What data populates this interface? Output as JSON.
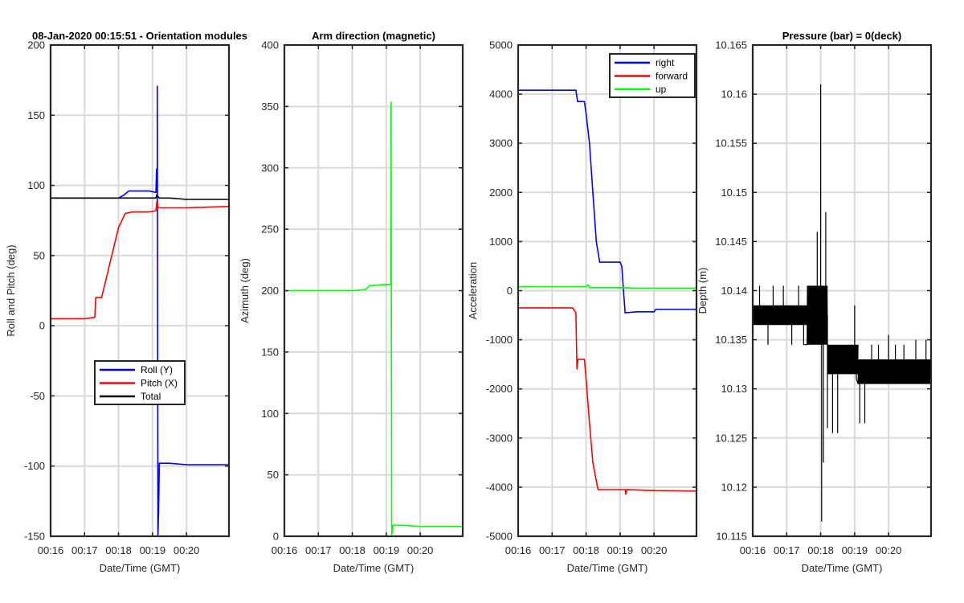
{
  "figure": {
    "background": "#ffffff",
    "grid_color": "#d9d9d9"
  },
  "chart_data": [
    {
      "type": "line",
      "title": "08-Jan-2020 00:15:51 - Orientation modules",
      "xlabel": "Date/Time (GMT)",
      "ylabel": "Roll and Pitch (deg)",
      "x_unit": "minutes",
      "xlim": [
        16,
        21.25
      ],
      "ylim": [
        -150,
        200
      ],
      "xticks": [
        16,
        17,
        18,
        19,
        20
      ],
      "xtick_labels": [
        "00:16",
        "00:17",
        "00:18",
        "00:19",
        "00:20"
      ],
      "yticks": [
        -150,
        -100,
        -50,
        0,
        50,
        100,
        150,
        200
      ],
      "ytick_labels": [
        "-150",
        "-100",
        "-50",
        "0",
        "50",
        "100",
        "150",
        "200"
      ],
      "grid": true,
      "legend": "lower-middle",
      "series": [
        {
          "name": "Roll (Y)",
          "color": "#0000ff",
          "points": [
            [
              16.0,
              91
            ],
            [
              17.8,
              91
            ],
            [
              18.0,
              91
            ],
            [
              18.15,
              93
            ],
            [
              18.3,
              96
            ],
            [
              18.9,
              96
            ],
            [
              19.1,
              95
            ],
            [
              19.12,
              112
            ],
            [
              19.14,
              95
            ],
            [
              19.14,
              171
            ],
            [
              19.16,
              -150
            ],
            [
              19.18,
              -130
            ],
            [
              19.2,
              -98
            ],
            [
              19.5,
              -98
            ],
            [
              20.0,
              -99
            ],
            [
              20.5,
              -99
            ],
            [
              21.25,
              -99
            ]
          ]
        },
        {
          "name": "Pitch (X)",
          "color": "#ff0000",
          "points": [
            [
              16.0,
              5
            ],
            [
              16.5,
              5
            ],
            [
              17.0,
              5
            ],
            [
              17.3,
              6
            ],
            [
              17.33,
              20
            ],
            [
              17.5,
              20
            ],
            [
              17.6,
              30
            ],
            [
              17.8,
              50
            ],
            [
              18.0,
              70
            ],
            [
              18.2,
              80
            ],
            [
              18.4,
              81
            ],
            [
              18.9,
              81
            ],
            [
              19.1,
              82
            ],
            [
              19.13,
              89
            ],
            [
              19.16,
              84
            ],
            [
              19.5,
              84
            ],
            [
              20.0,
              84
            ],
            [
              21.25,
              85
            ]
          ]
        },
        {
          "name": "Total",
          "color": "#000000",
          "points": [
            [
              16.0,
              91
            ],
            [
              17.0,
              91
            ],
            [
              18.0,
              91
            ],
            [
              18.5,
              91
            ],
            [
              19.1,
              91
            ],
            [
              19.12,
              93
            ],
            [
              19.2,
              91
            ],
            [
              19.5,
              91
            ],
            [
              20.0,
              90
            ],
            [
              21.25,
              90
            ]
          ]
        }
      ]
    },
    {
      "type": "line",
      "title": "Arm direction (magnetic)",
      "xlabel": "Date/Time (GMT)",
      "ylabel": "Azimuth (deg)",
      "x_unit": "minutes",
      "xlim": [
        16,
        21.25
      ],
      "ylim": [
        0,
        400
      ],
      "xticks": [
        16,
        17,
        18,
        19,
        20
      ],
      "xtick_labels": [
        "00:16",
        "00:17",
        "00:18",
        "00:19",
        "00:20"
      ],
      "yticks": [
        0,
        50,
        100,
        150,
        200,
        250,
        300,
        350,
        400
      ],
      "ytick_labels": [
        "0",
        "50",
        "100",
        "150",
        "200",
        "250",
        "300",
        "350",
        "400"
      ],
      "grid": true,
      "series": [
        {
          "name": "",
          "color": "#00ff00",
          "points": [
            [
              16.0,
              200
            ],
            [
              17.0,
              200
            ],
            [
              18.0,
              200
            ],
            [
              18.4,
              201
            ],
            [
              18.5,
              204
            ],
            [
              19.0,
              205
            ],
            [
              19.13,
              205
            ],
            [
              19.14,
              354
            ],
            [
              19.16,
              1
            ],
            [
              19.2,
              9
            ],
            [
              19.5,
              9
            ],
            [
              20.0,
              8
            ],
            [
              20.5,
              8
            ],
            [
              21.25,
              8
            ]
          ]
        }
      ]
    },
    {
      "type": "line",
      "title": "",
      "xlabel": "Date/Time (GMT)",
      "ylabel": "Acceleration",
      "x_unit": "minutes",
      "xlim": [
        16,
        21.25
      ],
      "ylim": [
        -5000,
        5000
      ],
      "xticks": [
        16,
        17,
        18,
        19,
        20
      ],
      "xtick_labels": [
        "00:16",
        "00:17",
        "00:18",
        "00:19",
        "00:20"
      ],
      "yticks": [
        -5000,
        -4000,
        -3000,
        -2000,
        -1000,
        0,
        1000,
        2000,
        3000,
        4000,
        5000
      ],
      "ytick_labels": [
        "-5000",
        "-4000",
        "-3000",
        "-2000",
        "-1000",
        "0",
        "1000",
        "2000",
        "3000",
        "4000",
        "5000"
      ],
      "grid": true,
      "legend": "top-right",
      "series": [
        {
          "name": "right",
          "color": "#0000ff",
          "points": [
            [
              16.0,
              4080
            ],
            [
              17.0,
              4080
            ],
            [
              17.7,
              4080
            ],
            [
              17.75,
              3850
            ],
            [
              17.95,
              3850
            ],
            [
              18.0,
              3600
            ],
            [
              18.1,
              3000
            ],
            [
              18.2,
              2000
            ],
            [
              18.3,
              1000
            ],
            [
              18.4,
              580
            ],
            [
              19.0,
              580
            ],
            [
              19.05,
              500
            ],
            [
              19.1,
              0
            ],
            [
              19.15,
              -450
            ],
            [
              19.5,
              -430
            ],
            [
              20.0,
              -430
            ],
            [
              20.05,
              -380
            ],
            [
              21.25,
              -380
            ]
          ]
        },
        {
          "name": "forward",
          "color": "#ff0000",
          "points": [
            [
              16.0,
              -350
            ],
            [
              17.0,
              -350
            ],
            [
              17.6,
              -350
            ],
            [
              17.7,
              -450
            ],
            [
              17.73,
              -1600
            ],
            [
              17.76,
              -1400
            ],
            [
              17.95,
              -1400
            ],
            [
              18.0,
              -1800
            ],
            [
              18.1,
              -2700
            ],
            [
              18.2,
              -3500
            ],
            [
              18.35,
              -4050
            ],
            [
              19.0,
              -4050
            ],
            [
              19.15,
              -4050
            ],
            [
              19.17,
              -4150
            ],
            [
              19.2,
              -4050
            ],
            [
              20.0,
              -4070
            ],
            [
              21.25,
              -4080
            ]
          ]
        },
        {
          "name": "up",
          "color": "#00ff00",
          "points": [
            [
              16.0,
              80
            ],
            [
              17.0,
              80
            ],
            [
              18.0,
              80
            ],
            [
              18.05,
              120
            ],
            [
              18.1,
              60
            ],
            [
              19.0,
              60
            ],
            [
              19.5,
              50
            ],
            [
              20.0,
              50
            ],
            [
              21.25,
              50
            ]
          ]
        }
      ]
    },
    {
      "type": "line",
      "title": "Pressure (bar) = 0(deck)",
      "xlabel": "Date/Time (GMT)",
      "ylabel": "Depth (m)",
      "x_unit": "minutes",
      "xlim": [
        16,
        21.25
      ],
      "ylim": [
        10.115,
        10.165
      ],
      "xticks": [
        16,
        17,
        18,
        19,
        20
      ],
      "xtick_labels": [
        "00:16",
        "00:17",
        "00:18",
        "00:19",
        "00:20"
      ],
      "yticks": [
        10.115,
        10.12,
        10.125,
        10.13,
        10.135,
        10.14,
        10.145,
        10.15,
        10.155,
        10.16,
        10.165
      ],
      "ytick_labels": [
        "10.115",
        "10.12",
        "10.125",
        "10.13",
        "10.135",
        "10.14",
        "10.145",
        "10.15",
        "10.155",
        "10.16",
        "10.165"
      ],
      "grid": true,
      "series": [
        {
          "name": "",
          "color": "#000000",
          "noisy_segments": [
            {
              "x_start": 16.0,
              "x_end": 17.6,
              "y_low": 10.1365,
              "y_high": 10.1385,
              "spikes": [
                [
                  16.2,
                  10.1405
                ],
                [
                  16.45,
                  10.1345
                ],
                [
                  16.6,
                  10.1405
                ],
                [
                  16.9,
                  10.1405
                ],
                [
                  17.15,
                  10.1345
                ],
                [
                  17.35,
                  10.1405
                ],
                [
                  17.5,
                  10.1345
                ]
              ]
            },
            {
              "x_start": 17.6,
              "x_end": 18.2,
              "y_low": 10.1345,
              "y_high": 10.1405,
              "spikes": [
                [
                  17.9,
                  10.146
                ],
                [
                  18.0,
                  10.161
                ],
                [
                  18.03,
                  10.1165
                ],
                [
                  18.08,
                  10.1225
                ],
                [
                  18.15,
                  10.148
                ],
                [
                  18.2,
                  10.126
                ]
              ]
            },
            {
              "x_start": 18.2,
              "x_end": 19.1,
              "y_low": 10.1315,
              "y_high": 10.1345,
              "spikes": [
                [
                  18.35,
                  10.1255
                ],
                [
                  18.5,
                  10.1255
                ],
                [
                  18.9,
                  10.1335
                ],
                [
                  19.0,
                  10.1385
                ],
                [
                  19.05,
                  10.131
                ]
              ]
            },
            {
              "x_start": 19.1,
              "x_end": 21.25,
              "y_low": 10.1305,
              "y_high": 10.133,
              "spikes": [
                [
                  19.15,
                  10.1265
                ],
                [
                  19.3,
                  10.1265
                ],
                [
                  19.5,
                  10.1345
                ],
                [
                  19.7,
                  10.1345
                ],
                [
                  20.0,
                  10.1355
                ],
                [
                  20.2,
                  10.1345
                ],
                [
                  20.45,
                  10.1345
                ],
                [
                  20.8,
                  10.135
                ],
                [
                  21.1,
                  10.135
                ]
              ]
            }
          ]
        }
      ]
    }
  ]
}
